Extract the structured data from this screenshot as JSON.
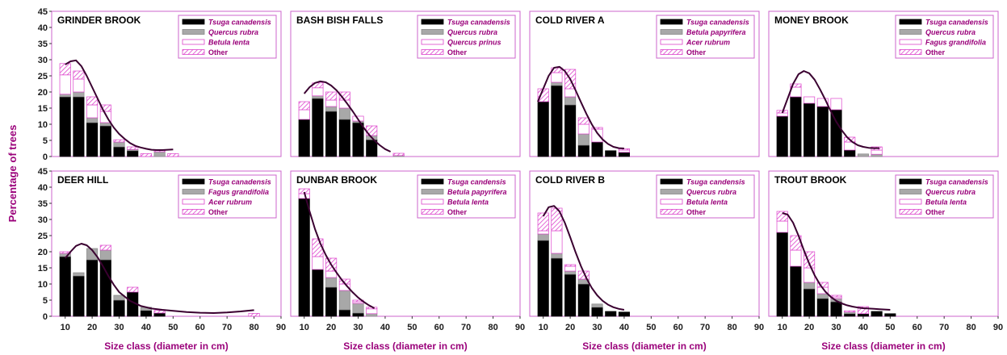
{
  "y_axis_label": "Percentage of trees",
  "colors": {
    "frame": "#cc66cc",
    "tsuga": "#000000",
    "second": "#a8a8a8",
    "third": "#ffffff",
    "other_hatch": "#dd44cc",
    "curve": "#3a0030",
    "label": "#9a007a"
  },
  "chart_data": [
    {
      "type": "bar",
      "title": "GRINDER BROOK",
      "xlabel": "Size class (diameter in cm)",
      "ylabel": "Percentage of trees",
      "xlim": [
        5,
        90
      ],
      "ylim": [
        0,
        45
      ],
      "xticks": [
        10,
        20,
        30,
        40,
        50,
        60,
        70,
        80,
        90
      ],
      "yticks": [
        0,
        5,
        10,
        15,
        20,
        25,
        30,
        35,
        40,
        45
      ],
      "stacked": true,
      "legend": "top-right",
      "categories": [
        10,
        15,
        20,
        25,
        30,
        35,
        40,
        45,
        50
      ],
      "series": [
        {
          "name": "Tsuga canadensis",
          "italic": true,
          "pattern": "black",
          "values": [
            18.5,
            18.5,
            10.5,
            9.5,
            3,
            1.8,
            0,
            0,
            0
          ]
        },
        {
          "name": "Quercus rubra",
          "italic": true,
          "pattern": "gray",
          "values": [
            0.8,
            1.5,
            1.5,
            1,
            1.5,
            0.4,
            0,
            1.5,
            0
          ]
        },
        {
          "name": "Betula lenta",
          "italic": true,
          "pattern": "white",
          "values": [
            6,
            4,
            4,
            3.5,
            0,
            0,
            0,
            0,
            0
          ]
        },
        {
          "name": "Other",
          "italic": false,
          "pattern": "hatch",
          "values": [
            3.5,
            2.5,
            2.5,
            2,
            0.7,
            0.8,
            0.9,
            0.5,
            0.9
          ]
        }
      ],
      "curve": {
        "x": [
          10,
          12,
          14,
          16,
          18,
          20,
          22,
          24,
          26,
          28,
          30,
          32,
          34,
          36,
          38,
          40,
          42,
          44,
          46,
          48,
          50
        ],
        "y": [
          28.5,
          29.5,
          29.8,
          28,
          25,
          21.5,
          18,
          14.5,
          11.5,
          9,
          7,
          5.5,
          4.2,
          3.3,
          2.8,
          2.4,
          2.1,
          2.0,
          2.0,
          2.1,
          2.2
        ]
      }
    },
    {
      "type": "bar",
      "title": "BASH BISH FALLS",
      "xlabel": "Size class (diameter in cm)",
      "ylabel": "Percentage of trees",
      "xlim": [
        5,
        90
      ],
      "ylim": [
        0,
        45
      ],
      "xticks": [
        10,
        20,
        30,
        40,
        50,
        60,
        70,
        80,
        90
      ],
      "yticks": [
        0,
        5,
        10,
        15,
        20,
        25,
        30,
        35,
        40,
        45
      ],
      "stacked": true,
      "legend": "top-right",
      "categories": [
        10,
        15,
        20,
        25,
        30,
        35,
        40,
        45
      ],
      "series": [
        {
          "name": "Tsuga canadensis",
          "italic": true,
          "pattern": "black",
          "values": [
            11.5,
            18,
            14,
            11.5,
            10.5,
            5.2,
            0,
            0
          ]
        },
        {
          "name": "Quercus rubra",
          "italic": true,
          "pattern": "gray",
          "values": [
            0,
            0.8,
            1.5,
            3.5,
            0.5,
            1.3,
            0,
            0.3
          ]
        },
        {
          "name": "Quercus prinus",
          "italic": true,
          "pattern": "white",
          "values": [
            3,
            2.5,
            2,
            2.5,
            1.5,
            0,
            0,
            0
          ]
        },
        {
          "name": "Other",
          "italic": false,
          "pattern": "hatch",
          "values": [
            2.5,
            1.5,
            2.5,
            2.5,
            0,
            3,
            0,
            0.7
          ]
        }
      ],
      "curve": {
        "x": [
          10,
          12,
          14,
          16,
          18,
          20,
          22,
          24,
          26,
          28,
          30,
          32,
          34,
          36,
          38,
          40,
          42
        ],
        "y": [
          19.5,
          21.5,
          22.8,
          23.3,
          23,
          22,
          20.5,
          18.5,
          16.3,
          14,
          11.5,
          9,
          6.8,
          5,
          3.5,
          2.3,
          1.5
        ]
      }
    },
    {
      "type": "bar",
      "title": "COLD RIVER A",
      "xlabel": "Size class (diameter in cm)",
      "ylabel": "Percentage of trees",
      "xlim": [
        5,
        90
      ],
      "ylim": [
        0,
        45
      ],
      "xticks": [
        10,
        20,
        30,
        40,
        50,
        60,
        70,
        80,
        90
      ],
      "yticks": [
        0,
        5,
        10,
        15,
        20,
        25,
        30,
        35,
        40,
        45
      ],
      "stacked": true,
      "legend": "top-right",
      "categories": [
        10,
        15,
        20,
        25,
        30,
        35,
        40
      ],
      "series": [
        {
          "name": "Tsuga canadensis",
          "italic": true,
          "pattern": "black",
          "values": [
            17,
            22,
            16,
            3.5,
            4.5,
            1.8,
            1.3
          ]
        },
        {
          "name": "Betula papyrifera",
          "italic": true,
          "pattern": "gray",
          "values": [
            0,
            1,
            2.5,
            3.5,
            0,
            0,
            0
          ]
        },
        {
          "name": "Acer rubrum",
          "italic": true,
          "pattern": "white",
          "values": [
            0,
            3,
            2.5,
            3,
            4,
            0,
            0.7
          ]
        },
        {
          "name": "Other",
          "italic": false,
          "pattern": "hatch",
          "values": [
            4,
            1.5,
            6,
            2,
            0.5,
            0,
            0.4
          ]
        }
      ],
      "curve": {
        "x": [
          8,
          10,
          12,
          14,
          16,
          18,
          20,
          22,
          24,
          26,
          28,
          30,
          32,
          34,
          36,
          38,
          40
        ],
        "y": [
          17,
          21,
          25,
          27.5,
          27.8,
          26.5,
          24,
          20.5,
          16.8,
          13.2,
          10,
          7.3,
          5.3,
          3.9,
          3.0,
          2.6,
          2.5
        ]
      }
    },
    {
      "type": "bar",
      "title": "MONEY BROOK",
      "xlabel": "Size class (diameter in cm)",
      "ylabel": "Percentage of trees",
      "xlim": [
        5,
        90
      ],
      "ylim": [
        0,
        45
      ],
      "xticks": [
        10,
        20,
        30,
        40,
        50,
        60,
        70,
        80,
        90
      ],
      "yticks": [
        0,
        5,
        10,
        15,
        20,
        25,
        30,
        35,
        40,
        45
      ],
      "stacked": true,
      "legend": "top-right",
      "categories": [
        10,
        15,
        20,
        25,
        30,
        35,
        40,
        45
      ],
      "series": [
        {
          "name": "Tsuga canadensis",
          "italic": true,
          "pattern": "black",
          "values": [
            12.5,
            18.5,
            16.5,
            15.5,
            14.5,
            2,
            0,
            0
          ]
        },
        {
          "name": "Quercus rubra",
          "italic": true,
          "pattern": "gray",
          "values": [
            0,
            0,
            0,
            0,
            0,
            0,
            0.8,
            0.7
          ]
        },
        {
          "name": "Fagus grandifolia",
          "italic": true,
          "pattern": "white",
          "values": [
            1,
            3,
            2,
            2.5,
            3.5,
            2.5,
            0,
            1.3
          ]
        },
        {
          "name": "Other",
          "italic": false,
          "pattern": "hatch",
          "values": [
            0.8,
            1,
            0,
            0,
            0,
            1.5,
            0,
            1
          ]
        }
      ],
      "curve": {
        "x": [
          10,
          12,
          14,
          16,
          18,
          20,
          22,
          24,
          26,
          28,
          30,
          32,
          34,
          36,
          38,
          40,
          42,
          44,
          46
        ],
        "y": [
          13.5,
          18,
          22.5,
          25.5,
          26.5,
          25.8,
          23.8,
          20.8,
          17.5,
          14,
          10.8,
          8.2,
          6,
          4.5,
          3.5,
          3,
          2.7,
          2.6,
          2.6
        ]
      }
    },
    {
      "type": "bar",
      "title": "DEER HILL",
      "xlabel": "Size class (diameter in cm)",
      "ylabel": "Percentage of trees",
      "xlim": [
        5,
        90
      ],
      "ylim": [
        0,
        45
      ],
      "xticks": [
        10,
        20,
        30,
        40,
        50,
        60,
        70,
        80,
        90
      ],
      "yticks": [
        0,
        5,
        10,
        15,
        20,
        25,
        30,
        35,
        40,
        45
      ],
      "stacked": true,
      "legend": "top-right",
      "categories": [
        10,
        15,
        20,
        25,
        30,
        35,
        40,
        45,
        80
      ],
      "series": [
        {
          "name": "Tsuga canadensis",
          "italic": true,
          "pattern": "black",
          "values": [
            18.5,
            12.5,
            17.5,
            17.5,
            5,
            7.5,
            1.8,
            1,
            0
          ]
        },
        {
          "name": "Fagus grandifolia",
          "italic": true,
          "pattern": "gray",
          "values": [
            1,
            1,
            3.5,
            3,
            1.5,
            0,
            1,
            0,
            0
          ]
        },
        {
          "name": "Acer rubrum",
          "italic": true,
          "pattern": "white",
          "values": [
            0,
            0,
            0,
            0,
            0,
            0,
            0,
            0,
            0
          ]
        },
        {
          "name": "Other",
          "italic": false,
          "pattern": "hatch",
          "values": [
            0.5,
            0,
            0,
            1.5,
            0,
            1.5,
            0,
            0.8,
            0.9
          ]
        }
      ],
      "curve": {
        "x": [
          10,
          12,
          14,
          16,
          18,
          20,
          22,
          24,
          26,
          28,
          30,
          34,
          38,
          42,
          46,
          50,
          55,
          60,
          65,
          70,
          75,
          80
        ],
        "y": [
          18,
          20,
          21.8,
          22.5,
          22,
          20.5,
          18.3,
          15.5,
          12.5,
          9.8,
          7.5,
          4.8,
          3.2,
          2.4,
          2,
          1.7,
          1.3,
          1.1,
          1.0,
          1.2,
          1.5,
          1.9
        ]
      }
    },
    {
      "type": "bar",
      "title": "DUNBAR BROOK",
      "xlabel": "Size class (diameter in cm)",
      "ylabel": "Percentage of trees",
      "xlim": [
        5,
        90
      ],
      "ylim": [
        0,
        45
      ],
      "xticks": [
        10,
        20,
        30,
        40,
        50,
        60,
        70,
        80,
        90
      ],
      "yticks": [
        0,
        5,
        10,
        15,
        20,
        25,
        30,
        35,
        40,
        45
      ],
      "stacked": true,
      "legend": "top-right",
      "categories": [
        10,
        15,
        20,
        25,
        30,
        35
      ],
      "series": [
        {
          "name": "Tsuga candensis",
          "italic": true,
          "pattern": "black",
          "values": [
            36.5,
            14.5,
            9,
            2,
            1,
            0
          ]
        },
        {
          "name": "Betula papyrifera",
          "italic": true,
          "pattern": "gray",
          "values": [
            0,
            0,
            3,
            6,
            3,
            0.8
          ]
        },
        {
          "name": "Betula lenta",
          "italic": true,
          "pattern": "white",
          "values": [
            1.5,
            4,
            2,
            2,
            0.5,
            1.5
          ]
        },
        {
          "name": "Other",
          "italic": false,
          "pattern": "hatch",
          "values": [
            1.5,
            5.5,
            4,
            1.5,
            0.5,
            0.5
          ]
        }
      ],
      "curve": {
        "x": [
          10,
          12,
          14,
          16,
          18,
          20,
          22,
          24,
          26,
          28,
          30,
          32,
          34,
          36
        ],
        "y": [
          38.5,
          32.5,
          27,
          22.5,
          19,
          16,
          13.5,
          11.2,
          9.2,
          7.4,
          5.8,
          4.5,
          3.4,
          2.5
        ]
      }
    },
    {
      "type": "bar",
      "title": "COLD RIVER B",
      "xlabel": "Size class (diameter in cm)",
      "ylabel": "Percentage of trees",
      "xlim": [
        5,
        90
      ],
      "ylim": [
        0,
        45
      ],
      "xticks": [
        10,
        20,
        30,
        40,
        50,
        60,
        70,
        80,
        90
      ],
      "yticks": [
        0,
        5,
        10,
        15,
        20,
        25,
        30,
        35,
        40,
        45
      ],
      "stacked": true,
      "legend": "top-right",
      "categories": [
        10,
        15,
        20,
        25,
        30,
        35,
        40
      ],
      "series": [
        {
          "name": "Tsuga candensis",
          "italic": true,
          "pattern": "black",
          "values": [
            23.5,
            18,
            13,
            10,
            2.8,
            1.5,
            1.3
          ]
        },
        {
          "name": "Quercus rubra",
          "italic": true,
          "pattern": "gray",
          "values": [
            2,
            1.5,
            1,
            1.5,
            1,
            0,
            0
          ]
        },
        {
          "name": "Betula lenta",
          "italic": true,
          "pattern": "white",
          "values": [
            1,
            7,
            1.5,
            0,
            0,
            0,
            0
          ]
        },
        {
          "name": "Other",
          "italic": false,
          "pattern": "hatch",
          "values": [
            5.5,
            7,
            0.5,
            2.5,
            0,
            0,
            0
          ]
        }
      ],
      "curve": {
        "x": [
          10,
          12,
          14,
          16,
          18,
          20,
          22,
          24,
          26,
          28,
          30,
          32,
          34,
          36,
          38,
          40
        ],
        "y": [
          31,
          33.8,
          34.2,
          32.5,
          29,
          24.5,
          19.8,
          15.5,
          11.8,
          8.8,
          6.5,
          4.8,
          3.6,
          2.8,
          2.3,
          2.0
        ]
      }
    },
    {
      "type": "bar",
      "title": "TROUT BROOK",
      "xlabel": "Size class (diameter in cm)",
      "ylabel": "Percentage of trees",
      "xlim": [
        5,
        90
      ],
      "ylim": [
        0,
        45
      ],
      "xticks": [
        10,
        20,
        30,
        40,
        50,
        60,
        70,
        80,
        90
      ],
      "yticks": [
        0,
        5,
        10,
        15,
        20,
        25,
        30,
        35,
        40,
        45
      ],
      "stacked": true,
      "legend": "top-right",
      "categories": [
        10,
        15,
        20,
        25,
        30,
        35,
        40,
        45,
        50
      ],
      "series": [
        {
          "name": "Tsuga canadensis",
          "italic": true,
          "pattern": "black",
          "values": [
            26,
            15.5,
            8.5,
            5.5,
            4.5,
            0.8,
            0.8,
            1.5,
            0.8
          ]
        },
        {
          "name": "Quercus rubra",
          "italic": true,
          "pattern": "gray",
          "values": [
            0,
            0,
            2,
            1.5,
            1,
            0.5,
            0,
            0,
            0
          ]
        },
        {
          "name": "Betula lenta",
          "italic": true,
          "pattern": "white",
          "values": [
            3.5,
            5,
            4.5,
            2,
            0.5,
            0,
            0,
            0,
            0
          ]
        },
        {
          "name": "Other",
          "italic": false,
          "pattern": "hatch",
          "values": [
            3,
            4.5,
            5,
            1.5,
            0.5,
            0.4,
            2.2,
            0,
            0
          ]
        }
      ],
      "curve": {
        "x": [
          10,
          12,
          14,
          16,
          18,
          20,
          22,
          24,
          26,
          28,
          30,
          32,
          34,
          36,
          38,
          40,
          42,
          44,
          46,
          48,
          50
        ],
        "y": [
          32,
          31.5,
          29,
          25,
          20.5,
          16.3,
          12.7,
          9.8,
          7.6,
          6,
          4.8,
          4,
          3.4,
          3,
          2.7,
          2.5,
          2.4,
          2.3,
          2.2,
          2.1,
          2.0
        ]
      }
    }
  ]
}
